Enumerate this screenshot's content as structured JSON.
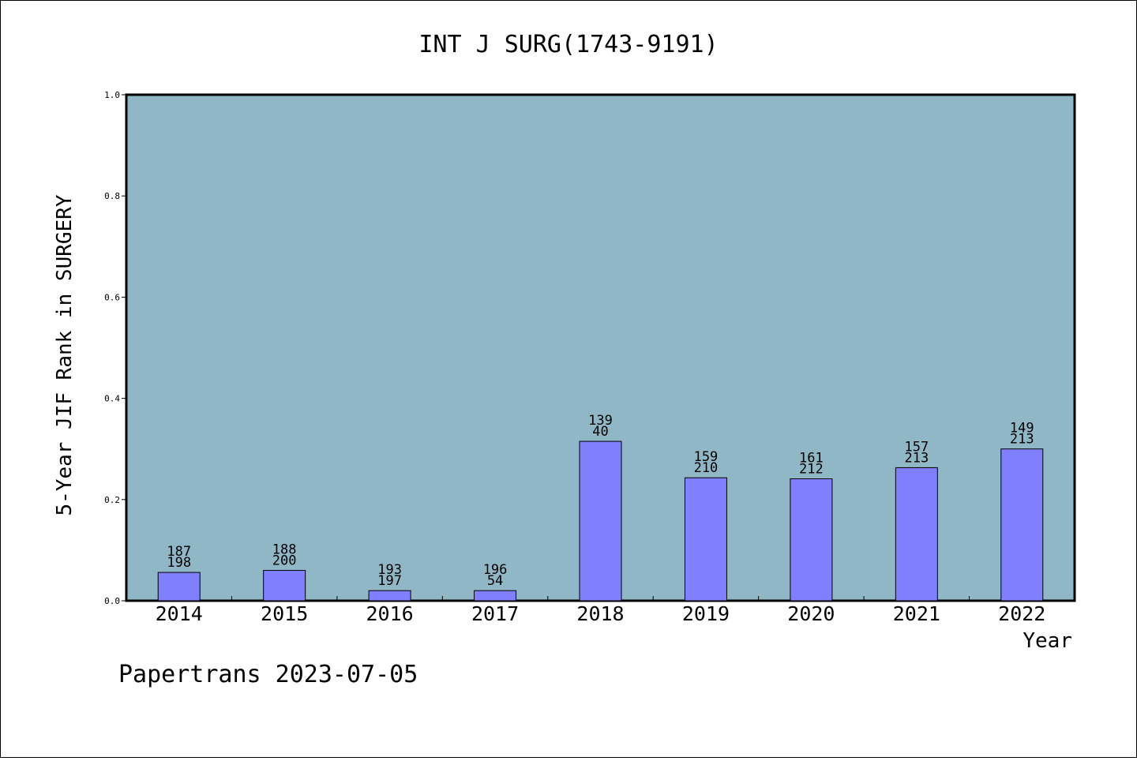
{
  "chart_data": {
    "type": "bar",
    "title": "INT J SURG(1743-9191)",
    "xlabel": "Year",
    "ylabel": "5-Year JIF Rank in SURGERY",
    "ylim": [
      0.0,
      1.0
    ],
    "yticks": [
      "0.0",
      "0.2",
      "0.4",
      "0.6",
      "0.8",
      "1.0"
    ],
    "categories": [
      "2014",
      "2015",
      "2016",
      "2017",
      "2018",
      "2019",
      "2020",
      "2021",
      "2022"
    ],
    "values": [
      0.056,
      0.06,
      0.02,
      0.02,
      0.315,
      0.243,
      0.241,
      0.263,
      0.3
    ],
    "labels_top": [
      "187",
      "188",
      "193",
      "196",
      "139",
      "159",
      "161",
      "157",
      "149"
    ],
    "labels_bottom": [
      "198",
      "200",
      "197",
      "54",
      "40",
      "210",
      "212",
      "213",
      "213"
    ],
    "grid": false,
    "colors": {
      "plot_background": "#90b7c5",
      "bar_fill": "#8080ff",
      "bar_stroke": "#000000"
    }
  },
  "footer": {
    "watermark": "Papertrans 2023-07-05"
  }
}
